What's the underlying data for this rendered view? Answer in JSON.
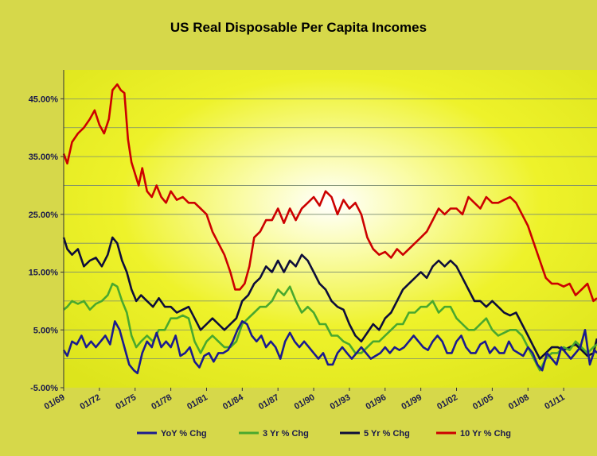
{
  "chart_data": {
    "type": "line",
    "title": "US Real Disposable Per Capita Incomes",
    "xlabel": "",
    "ylabel": "",
    "ylim": [
      -5,
      50
    ],
    "y_ticks": [
      "-5.00%",
      "5.00%",
      "15.00%",
      "25.00%",
      "35.00%",
      "45.00%"
    ],
    "y_tick_values": [
      -5,
      5,
      15,
      25,
      35,
      45
    ],
    "x_ticks": [
      "01/69",
      "01/72",
      "01/75",
      "01/78",
      "01/81",
      "01/84",
      "01/87",
      "01/90",
      "01/93",
      "01/96",
      "01/99",
      "01/02",
      "01/05",
      "01/08",
      "01/11"
    ],
    "x_tick_values": [
      1969,
      1972,
      1975,
      1978,
      1981,
      1984,
      1987,
      1990,
      1993,
      1996,
      1999,
      2002,
      2005,
      2008,
      2011
    ],
    "xlim": [
      1969,
      2013.8
    ],
    "grid": true,
    "legend_position": "bottom",
    "series": [
      {
        "name": "10 Yr % Chg",
        "color": "#cc0000",
        "x": [
          1969.0,
          1969.3,
          1969.7,
          1970.2,
          1970.7,
          1971.2,
          1971.6,
          1972.0,
          1972.4,
          1972.8,
          1973.1,
          1973.5,
          1973.8,
          1974.1,
          1974.4,
          1974.7,
          1975.0,
          1975.3,
          1975.6,
          1976.0,
          1976.4,
          1976.8,
          1977.2,
          1977.6,
          1978.0,
          1978.5,
          1979.0,
          1979.5,
          1980.0,
          1980.5,
          1981.0,
          1981.5,
          1982.0,
          1982.5,
          1983.0,
          1983.4,
          1983.8,
          1984.2,
          1984.6,
          1985.0,
          1985.5,
          1986.0,
          1986.5,
          1987.0,
          1987.5,
          1988.0,
          1988.5,
          1989.0,
          1989.5,
          1990.0,
          1990.5,
          1991.0,
          1991.5,
          1992.0,
          1992.5,
          1993.0,
          1993.5,
          1994.0,
          1994.5,
          1995.0,
          1995.5,
          1996.0,
          1996.5,
          1997.0,
          1997.5,
          1998.0,
          1998.5,
          1999.0,
          1999.5,
          2000.0,
          2000.5,
          2001.0,
          2001.5,
          2002.0,
          2002.5,
          2003.0,
          2003.5,
          2004.0,
          2004.5,
          2005.0,
          2005.5,
          2006.0,
          2006.5,
          2007.0,
          2007.5,
          2008.0,
          2008.5,
          2009.0,
          2009.5,
          2010.0,
          2010.5,
          2011.0,
          2011.5,
          2012.0,
          2012.5,
          2013.0,
          2013.5,
          2013.8
        ],
        "values": [
          35.5,
          33.8,
          37.5,
          39,
          40,
          41.5,
          43,
          40.5,
          39,
          41.5,
          46.5,
          47.5,
          46.5,
          46,
          38,
          34,
          32,
          30,
          33,
          29,
          28,
          30,
          28,
          27,
          29,
          27.5,
          28,
          27,
          27,
          26,
          25,
          22,
          20,
          18,
          15,
          12,
          12,
          13,
          16,
          21,
          22,
          24,
          24,
          26,
          23.5,
          26,
          24,
          26,
          27,
          28,
          26.5,
          29,
          28,
          25,
          27.5,
          26,
          27,
          25,
          21,
          19,
          18,
          18.5,
          17.5,
          19,
          18,
          19,
          20,
          21,
          22,
          24,
          26,
          25,
          26,
          26,
          25,
          28,
          27,
          26,
          28,
          27,
          27,
          27.5,
          28,
          27,
          25,
          23,
          20,
          17,
          14,
          13,
          13,
          12.5,
          13,
          11,
          12,
          13,
          10,
          10.5
        ]
      },
      {
        "name": "5 Yr % Chg",
        "color": "#0d0d3a",
        "x": [
          1969.0,
          1969.3,
          1969.7,
          1970.2,
          1970.7,
          1971.2,
          1971.7,
          1972.2,
          1972.7,
          1973.1,
          1973.5,
          1973.9,
          1974.3,
          1974.7,
          1975.1,
          1975.5,
          1976.0,
          1976.5,
          1977.0,
          1977.5,
          1978.0,
          1978.5,
          1979.0,
          1979.5,
          1980.0,
          1980.5,
          1981.0,
          1981.5,
          1982.0,
          1982.5,
          1983.0,
          1983.5,
          1984.0,
          1984.5,
          1985.0,
          1985.5,
          1986.0,
          1986.5,
          1987.0,
          1987.5,
          1988.0,
          1988.5,
          1989.0,
          1989.5,
          1990.0,
          1990.5,
          1991.0,
          1991.5,
          1992.0,
          1992.5,
          1993.0,
          1993.5,
          1994.0,
          1994.5,
          1995.0,
          1995.5,
          1996.0,
          1996.5,
          1997.0,
          1997.5,
          1998.0,
          1998.5,
          1999.0,
          1999.5,
          2000.0,
          2000.5,
          2001.0,
          2001.5,
          2002.0,
          2002.5,
          2003.0,
          2003.5,
          2004.0,
          2004.5,
          2005.0,
          2005.5,
          2006.0,
          2006.5,
          2007.0,
          2007.5,
          2008.0,
          2008.5,
          2009.0,
          2009.5,
          2010.0,
          2010.5,
          2011.0,
          2011.5,
          2012.0,
          2012.5,
          2013.0,
          2013.5,
          2013.8
        ],
        "values": [
          21,
          19,
          18,
          19,
          16,
          17,
          17.5,
          16,
          18,
          21,
          20,
          17,
          15,
          12,
          10,
          11,
          10,
          9,
          10.5,
          9,
          9,
          8,
          8.5,
          9,
          7,
          5,
          6,
          7,
          6,
          5,
          6,
          7,
          10,
          11,
          13,
          14,
          16,
          15,
          17,
          15,
          17,
          16,
          18,
          17,
          15,
          13,
          12,
          10,
          9,
          8.5,
          6,
          4,
          3,
          4.5,
          6,
          5,
          7,
          8,
          10,
          12,
          13,
          14,
          15,
          14,
          16,
          17,
          16,
          17,
          16,
          14,
          12,
          10,
          10,
          9,
          10,
          9,
          8,
          7.5,
          8,
          6,
          4,
          2,
          0,
          1,
          2,
          2,
          1.5,
          2,
          2.5,
          1.5,
          0.5,
          1,
          3.5
        ]
      },
      {
        "name": "3 Yr % Chg",
        "color": "#49a82e",
        "x": [
          1969.0,
          1969.3,
          1969.7,
          1970.2,
          1970.7,
          1971.2,
          1971.7,
          1972.2,
          1972.7,
          1973.1,
          1973.5,
          1973.9,
          1974.3,
          1974.7,
          1975.1,
          1975.5,
          1976.0,
          1976.5,
          1977.0,
          1977.5,
          1978.0,
          1978.5,
          1979.0,
          1979.5,
          1980.0,
          1980.5,
          1981.0,
          1981.5,
          1982.0,
          1982.5,
          1983.0,
          1983.5,
          1984.0,
          1984.5,
          1985.0,
          1985.5,
          1986.0,
          1986.5,
          1987.0,
          1987.5,
          1988.0,
          1988.5,
          1989.0,
          1989.5,
          1990.0,
          1990.5,
          1991.0,
          1991.5,
          1992.0,
          1992.5,
          1993.0,
          1993.5,
          1994.0,
          1994.5,
          1995.0,
          1995.5,
          1996.0,
          1996.5,
          1997.0,
          1997.5,
          1998.0,
          1998.5,
          1999.0,
          1999.5,
          2000.0,
          2000.5,
          2001.0,
          2001.5,
          2002.0,
          2002.5,
          2003.0,
          2003.5,
          2004.0,
          2004.5,
          2005.0,
          2005.5,
          2006.0,
          2006.5,
          2007.0,
          2007.5,
          2008.0,
          2008.5,
          2009.0,
          2009.5,
          2010.0,
          2010.5,
          2011.0,
          2011.5,
          2012.0,
          2012.5,
          2013.0,
          2013.5,
          2013.8
        ],
        "values": [
          8.5,
          9,
          10,
          9.5,
          10,
          8.5,
          9.5,
          10,
          11,
          13,
          12.5,
          10,
          8,
          4,
          2,
          3,
          4,
          3,
          5,
          5,
          7,
          7,
          7.5,
          7,
          3,
          1,
          3,
          4,
          3,
          2,
          2,
          3,
          6,
          7,
          8,
          9,
          9,
          10,
          12,
          11,
          12.5,
          10,
          8,
          9,
          8,
          6,
          6,
          4,
          4,
          3,
          2.5,
          1,
          1,
          2,
          3,
          3,
          4,
          5,
          6,
          6,
          8,
          8,
          9,
          9,
          10,
          8,
          9,
          9,
          7,
          6,
          5,
          5,
          6,
          7,
          5,
          4,
          4.5,
          5,
          5,
          4,
          2,
          0,
          -2,
          0,
          1,
          1,
          2,
          1.5,
          3,
          2,
          1,
          2,
          2.5
        ]
      },
      {
        "name": "YoY % Chg",
        "color": "#1b1b8f",
        "x": [
          1969.0,
          1969.3,
          1969.7,
          1970.1,
          1970.5,
          1970.9,
          1971.3,
          1971.7,
          1972.1,
          1972.5,
          1972.9,
          1973.3,
          1973.7,
          1974.1,
          1974.5,
          1974.9,
          1975.2,
          1975.6,
          1976.0,
          1976.4,
          1976.8,
          1977.2,
          1977.6,
          1978.0,
          1978.4,
          1978.8,
          1979.2,
          1979.6,
          1980.0,
          1980.4,
          1980.8,
          1981.2,
          1981.6,
          1982.0,
          1982.4,
          1982.8,
          1983.2,
          1983.6,
          1984.0,
          1984.4,
          1984.8,
          1985.2,
          1985.6,
          1986.0,
          1986.4,
          1986.8,
          1987.2,
          1987.6,
          1988.0,
          1988.4,
          1988.8,
          1989.2,
          1989.6,
          1990.0,
          1990.4,
          1990.8,
          1991.2,
          1991.6,
          1992.0,
          1992.4,
          1992.8,
          1993.2,
          1993.6,
          1994.0,
          1994.4,
          1994.8,
          1995.2,
          1995.6,
          1996.0,
          1996.4,
          1996.8,
          1997.2,
          1997.6,
          1998.0,
          1998.4,
          1998.8,
          1999.2,
          1999.6,
          2000.0,
          2000.4,
          2000.8,
          2001.2,
          2001.6,
          2002.0,
          2002.4,
          2002.8,
          2003.2,
          2003.6,
          2004.0,
          2004.4,
          2004.8,
          2005.2,
          2005.6,
          2006.0,
          2006.4,
          2006.8,
          2007.2,
          2007.6,
          2008.0,
          2008.4,
          2008.8,
          2009.2,
          2009.6,
          2010.0,
          2010.4,
          2010.8,
          2011.2,
          2011.6,
          2012.0,
          2012.4,
          2012.8,
          2013.2,
          2013.6,
          2013.8
        ],
        "values": [
          1.5,
          0.5,
          3,
          2.5,
          4,
          2,
          3,
          2,
          3,
          4,
          2.5,
          6.5,
          5,
          2,
          -1,
          -2,
          -2.5,
          1,
          3,
          2,
          4.5,
          2,
          3,
          2,
          4,
          0.5,
          1,
          2,
          -0.5,
          -1.5,
          0.5,
          1,
          -0.5,
          1,
          1,
          1.5,
          3,
          5,
          6.5,
          6,
          4,
          3,
          4,
          2,
          3,
          2,
          0,
          3,
          4.5,
          3,
          2,
          3,
          2,
          1,
          0,
          1,
          -1,
          -1,
          1,
          2,
          1,
          0,
          1,
          2,
          1,
          0,
          0.5,
          1,
          2,
          1,
          2,
          1.5,
          2,
          3,
          4,
          3,
          2,
          1.5,
          3,
          4,
          3,
          1,
          1,
          3,
          4,
          2,
          1,
          1,
          2.5,
          3,
          1,
          2,
          1,
          1,
          3,
          1.5,
          1,
          0.5,
          2,
          1,
          -1,
          -2,
          1,
          0,
          -1,
          2,
          1,
          0,
          1,
          2,
          5,
          -1,
          1.5,
          1
        ]
      }
    ],
    "legend": [
      {
        "label": "YoY % Chg",
        "color": "#1b1b8f"
      },
      {
        "label": "3 Yr % Chg",
        "color": "#49a82e"
      },
      {
        "label": "5 Yr % Chg",
        "color": "#0d0d3a"
      },
      {
        "label": "10 Yr % Chg",
        "color": "#cc0000"
      }
    ]
  }
}
